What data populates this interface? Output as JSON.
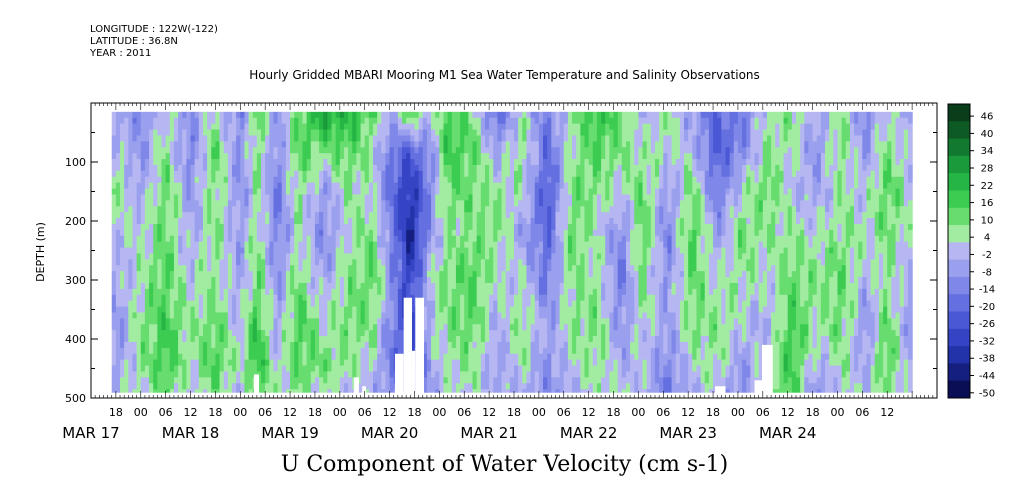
{
  "header": {
    "longitude": "LONGITUDE : 122W(-122)",
    "latitude": "LATITUDE : 36.8N",
    "year": "YEAR : 2011",
    "title": "Hourly Gridded MBARI Mooring M1 Sea Water Temperature and Salinity Observations"
  },
  "footer": {
    "variable": "U Component of Water Velocity (cm s-1)"
  },
  "chart_data": {
    "type": "heatmap",
    "title": "Hourly Gridded MBARI Mooring M1 Sea Water Temperature and Salinity Observations",
    "xlabel": "",
    "ylabel": "DEPTH (m)",
    "colorbar_label": "U Component of Water Velocity (cm s-1)",
    "y_axis": {
      "range": [
        0,
        500
      ],
      "inverted": true,
      "ticks": [
        100,
        200,
        300,
        400,
        500
      ]
    },
    "x_axis": {
      "range_hours": [
        -12,
        192
      ],
      "hour_ticks": [
        {
          "h": -6,
          "label": "18"
        },
        {
          "h": 0,
          "label": "00"
        },
        {
          "h": 6,
          "label": "06"
        },
        {
          "h": 12,
          "label": "12"
        },
        {
          "h": 18,
          "label": "18"
        },
        {
          "h": 24,
          "label": "00"
        },
        {
          "h": 30,
          "label": "06"
        },
        {
          "h": 36,
          "label": "12"
        },
        {
          "h": 42,
          "label": "18"
        },
        {
          "h": 48,
          "label": "00"
        },
        {
          "h": 54,
          "label": "06"
        },
        {
          "h": 60,
          "label": "12"
        },
        {
          "h": 66,
          "label": "18"
        },
        {
          "h": 72,
          "label": "00"
        },
        {
          "h": 78,
          "label": "06"
        },
        {
          "h": 84,
          "label": "12"
        },
        {
          "h": 90,
          "label": "18"
        },
        {
          "h": 96,
          "label": "00"
        },
        {
          "h": 102,
          "label": "06"
        },
        {
          "h": 108,
          "label": "12"
        },
        {
          "h": 114,
          "label": "18"
        },
        {
          "h": 120,
          "label": "00"
        },
        {
          "h": 126,
          "label": "06"
        },
        {
          "h": 132,
          "label": "12"
        },
        {
          "h": 138,
          "label": "18"
        },
        {
          "h": 144,
          "label": "00"
        },
        {
          "h": 150,
          "label": "06"
        },
        {
          "h": 156,
          "label": "12"
        },
        {
          "h": 162,
          "label": "18"
        },
        {
          "h": 168,
          "label": "00"
        },
        {
          "h": 174,
          "label": "06"
        },
        {
          "h": 180,
          "label": "12"
        }
      ],
      "day_labels": [
        {
          "h": -12,
          "label": "MAR 17"
        },
        {
          "h": 12,
          "label": "MAR 18"
        },
        {
          "h": 36,
          "label": "MAR 19"
        },
        {
          "h": 60,
          "label": "MAR 20"
        },
        {
          "h": 84,
          "label": "MAR 21"
        },
        {
          "h": 108,
          "label": "MAR 22"
        },
        {
          "h": 132,
          "label": "MAR 23"
        },
        {
          "h": 156,
          "label": "MAR 24"
        }
      ]
    },
    "colorbar": {
      "levels": [
        46,
        40,
        34,
        28,
        22,
        16,
        10,
        4,
        -2,
        -8,
        -14,
        -20,
        -26,
        -32,
        -38,
        -44,
        -50
      ],
      "colors": [
        "#0a3d1a",
        "#0e5a24",
        "#127a30",
        "#1a9a3a",
        "#25b544",
        "#3ccc52",
        "#66dd6e",
        "#a2eca2",
        "#b6b6f2",
        "#9aa0ee",
        "#7f88e8",
        "#6470e0",
        "#4a58d6",
        "#3444c4",
        "#2232a8",
        "#141f80",
        "#0a0f55"
      ]
    },
    "data_extent_hours": [
      -7,
      186
    ],
    "data_top_depth": 15,
    "profiles": [
      {
        "h": -5,
        "u": [
          -4,
          2,
          8,
          2,
          -2,
          -6,
          -4,
          2
        ]
      },
      {
        "h": 0,
        "u": [
          -10,
          -8,
          -4,
          4,
          6,
          10,
          8,
          2
        ]
      },
      {
        "h": 6,
        "u": [
          4,
          10,
          14,
          12,
          16,
          18,
          20,
          14
        ]
      },
      {
        "h": 12,
        "u": [
          -8,
          -12,
          -6,
          -4,
          2,
          8,
          6,
          0
        ]
      },
      {
        "h": 18,
        "u": [
          6,
          14,
          12,
          10,
          8,
          14,
          18,
          12
        ]
      },
      {
        "h": 24,
        "u": [
          -12,
          -8,
          -10,
          -6,
          -4,
          0,
          4,
          -2
        ]
      },
      {
        "h": 28,
        "u": [
          16,
          12,
          8,
          10,
          14,
          20,
          22,
          16
        ]
      },
      {
        "h": 33,
        "u": [
          -6,
          -10,
          -14,
          -12,
          -8,
          -4,
          2,
          4
        ]
      },
      {
        "h": 38,
        "u": [
          12,
          16,
          10,
          6,
          12,
          18,
          16,
          10
        ]
      },
      {
        "h": 44,
        "u": [
          30,
          10,
          -6,
          -10,
          -4,
          6,
          12,
          4
        ]
      },
      {
        "h": 50,
        "u": [
          24,
          16,
          8,
          4,
          10,
          12,
          8,
          2
        ]
      },
      {
        "h": 56,
        "u": [
          14,
          6,
          4,
          12,
          16,
          10,
          4,
          -2
        ]
      },
      {
        "h": 60,
        "u": [
          -4,
          -12,
          -16,
          -10,
          -6,
          -10,
          -14,
          -8
        ]
      },
      {
        "h": 65,
        "u": [
          18,
          -20,
          -34,
          -38,
          -30,
          -28,
          -24,
          -16
        ]
      },
      {
        "h": 70,
        "u": [
          2,
          -8,
          -10,
          -6,
          4,
          2,
          -4,
          -6
        ]
      },
      {
        "h": 74,
        "u": [
          16,
          20,
          14,
          8,
          12,
          10,
          6,
          4
        ]
      },
      {
        "h": 80,
        "u": [
          10,
          14,
          12,
          10,
          16,
          14,
          10,
          4
        ]
      },
      {
        "h": 86,
        "u": [
          -20,
          -4,
          8,
          10,
          4,
          -2,
          -6,
          -4
        ]
      },
      {
        "h": 92,
        "u": [
          6,
          10,
          4,
          -4,
          4,
          10,
          6,
          0
        ]
      },
      {
        "h": 98,
        "u": [
          -14,
          -18,
          -24,
          -20,
          -14,
          -6,
          -8,
          -10
        ]
      },
      {
        "h": 104,
        "u": [
          10,
          6,
          12,
          14,
          10,
          8,
          4,
          -2
        ]
      },
      {
        "h": 110,
        "u": [
          22,
          16,
          10,
          4,
          8,
          12,
          10,
          6
        ]
      },
      {
        "h": 116,
        "u": [
          14,
          10,
          2,
          -10,
          -14,
          -8,
          -2,
          4
        ]
      },
      {
        "h": 121,
        "u": [
          -4,
          6,
          14,
          16,
          12,
          6,
          2,
          0
        ]
      },
      {
        "h": 127,
        "u": [
          10,
          4,
          -6,
          -12,
          -8,
          -4,
          -10,
          -14
        ]
      },
      {
        "h": 133,
        "u": [
          -8,
          2,
          12,
          18,
          14,
          10,
          4,
          -2
        ]
      },
      {
        "h": 139,
        "u": [
          -18,
          -22,
          -14,
          -6,
          4,
          10,
          8,
          4
        ]
      },
      {
        "h": 145,
        "u": [
          -14,
          -10,
          4,
          12,
          8,
          2,
          -6,
          -10
        ]
      },
      {
        "h": 151,
        "u": [
          4,
          10,
          14,
          8,
          2,
          -4,
          6,
          12
        ]
      },
      {
        "h": 157,
        "u": [
          12,
          6,
          2,
          8,
          14,
          18,
          20,
          16
        ]
      },
      {
        "h": 163,
        "u": [
          -4,
          -8,
          -4,
          4,
          10,
          6,
          -2,
          -8
        ]
      },
      {
        "h": 169,
        "u": [
          8,
          12,
          6,
          10,
          14,
          12,
          8,
          4
        ]
      },
      {
        "h": 175,
        "u": [
          -12,
          -6,
          2,
          4,
          -2,
          -8,
          -4,
          0
        ]
      },
      {
        "h": 180,
        "u": [
          6,
          10,
          16,
          12,
          8,
          14,
          18,
          10
        ]
      },
      {
        "h": 186,
        "u": [
          -6,
          -2,
          4,
          2,
          -4,
          -8,
          -6,
          -2
        ]
      }
    ],
    "profile_depths": [
      15,
      80,
      150,
      220,
      300,
      380,
      440,
      490
    ],
    "gaps": [
      {
        "h0": 27.3,
        "h1": 28.5,
        "d0": 460
      },
      {
        "h0": 51.4,
        "h1": 52.6,
        "d0": 465
      },
      {
        "h0": 53.4,
        "h1": 54.3,
        "d0": 480
      },
      {
        "h0": 61.3,
        "h1": 63.4,
        "d0": 425
      },
      {
        "h0": 63.4,
        "h1": 65.4,
        "d0": 330
      },
      {
        "h0": 65.4,
        "h1": 66.2,
        "d0": 420
      },
      {
        "h0": 66.2,
        "h1": 68.3,
        "d0": 330
      },
      {
        "h0": 138.5,
        "h1": 141.0,
        "d0": 480
      },
      {
        "h0": 148.0,
        "h1": 149.8,
        "d0": 470
      },
      {
        "h0": 149.8,
        "h1": 152.4,
        "d0": 410
      }
    ]
  }
}
